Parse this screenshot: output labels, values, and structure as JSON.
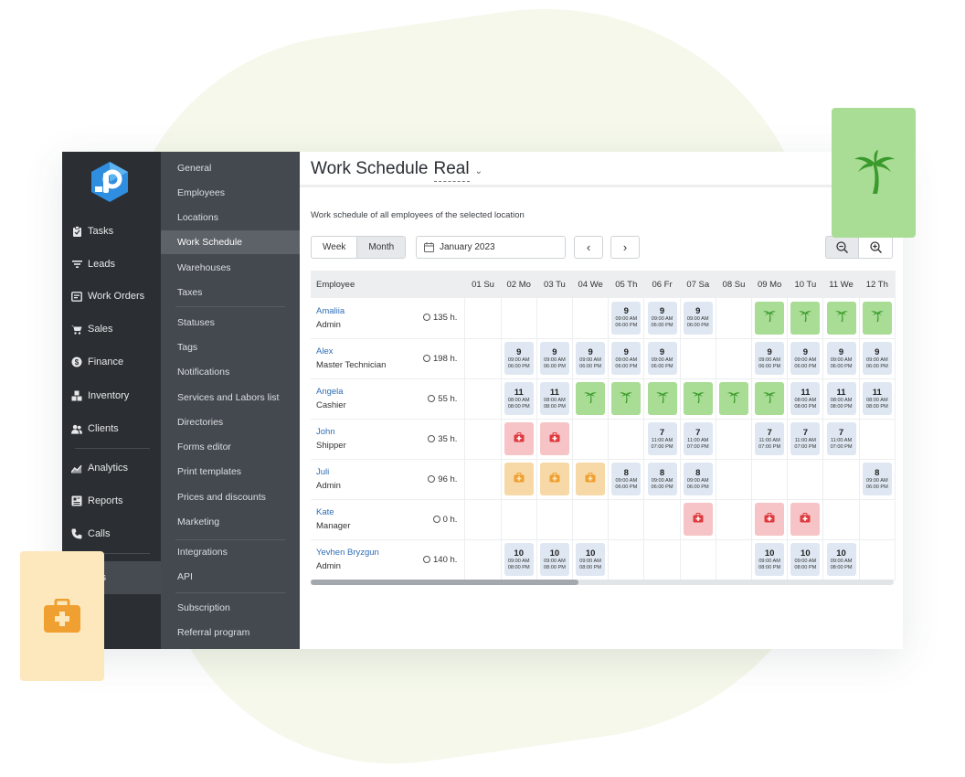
{
  "app": {
    "title_prefix": "Work Schedule",
    "title_selected": "Real",
    "subtitle": "Work schedule of all employees of the selected location"
  },
  "rail": {
    "items": [
      {
        "label": "Tasks",
        "icon": "clipboard-icon"
      },
      {
        "label": "Leads",
        "icon": "filter-icon"
      },
      {
        "label": "Work Orders",
        "icon": "work-order-icon"
      },
      {
        "label": "Sales",
        "icon": "cart-icon"
      },
      {
        "label": "Finance",
        "icon": "dollar-icon"
      },
      {
        "label": "Inventory",
        "icon": "boxes-icon"
      },
      {
        "label": "Clients",
        "icon": "users-icon"
      },
      {
        "label": "Analytics",
        "icon": "chart-icon"
      },
      {
        "label": "Reports",
        "icon": "reports-icon"
      },
      {
        "label": "Calls",
        "icon": "phone-icon"
      },
      {
        "label": "Settings",
        "label_visible": "ings",
        "icon": "gear-icon"
      }
    ]
  },
  "submenu": {
    "items": [
      "General",
      "Employees",
      "Locations",
      "Work Schedule",
      "Warehouses",
      "Taxes",
      "Statuses",
      "Tags",
      "Notifications",
      "Services and Labors list",
      "Directories",
      "Forms editor",
      "Print templates",
      "Prices and discounts",
      "Marketing",
      "Integrations",
      "API",
      "Subscription",
      "Referral program"
    ],
    "active": "Work Schedule"
  },
  "controls": {
    "week_label": "Week",
    "month_label": "Month",
    "date_value": "January 2023",
    "prev_icon": "chevron-left-icon",
    "next_icon": "chevron-right-icon",
    "zoom_out_icon": "zoom-out-icon",
    "zoom_in_icon": "zoom-in-icon"
  },
  "schedule": {
    "employee_header": "Employee",
    "days": [
      "01 Su",
      "02 Mo",
      "03 Tu",
      "04 We",
      "05 Th",
      "06 Fr",
      "07 Sa",
      "08 Su",
      "09 Mo",
      "10 Tu",
      "11 We",
      "12 Th"
    ],
    "rows": [
      {
        "name": "Amaliia",
        "role": "Admin",
        "hours": "135 h.",
        "cells": [
          null,
          null,
          null,
          null,
          {
            "type": "work",
            "num": "9",
            "start": "09:00 AM",
            "end": "06:00 PM"
          },
          {
            "type": "work",
            "num": "9",
            "start": "09:00 AM",
            "end": "06:00 PM"
          },
          {
            "type": "work",
            "num": "9",
            "start": "09:00 AM",
            "end": "06:00 PM"
          },
          null,
          {
            "type": "vacation"
          },
          {
            "type": "vacation"
          },
          {
            "type": "vacation"
          },
          {
            "type": "vacation"
          }
        ]
      },
      {
        "name": "Alex",
        "role": "Master Technician",
        "hours": "198 h.",
        "cells": [
          null,
          {
            "type": "work",
            "num": "9",
            "start": "09:00 AM",
            "end": "06:00 PM"
          },
          {
            "type": "work",
            "num": "9",
            "start": "09:00 AM",
            "end": "06:00 PM"
          },
          {
            "type": "work",
            "num": "9",
            "start": "09:00 AM",
            "end": "06:00 PM"
          },
          {
            "type": "work",
            "num": "9",
            "start": "09:00 AM",
            "end": "06:00 PM"
          },
          {
            "type": "work",
            "num": "9",
            "start": "09:00 AM",
            "end": "06:00 PM"
          },
          null,
          null,
          {
            "type": "work",
            "num": "9",
            "start": "09:00 AM",
            "end": "06:00 PM"
          },
          {
            "type": "work",
            "num": "9",
            "start": "09:00 AM",
            "end": "06:00 PM"
          },
          {
            "type": "work",
            "num": "9",
            "start": "09:00 AM",
            "end": "06:00 PM"
          },
          {
            "type": "work",
            "num": "9",
            "start": "09:00 AM",
            "end": "06:00 PM"
          }
        ]
      },
      {
        "name": "Angela",
        "role": "Cashier",
        "hours": "55 h.",
        "cells": [
          null,
          {
            "type": "work",
            "num": "11",
            "start": "08:00 AM",
            "end": "08:00 PM"
          },
          {
            "type": "work",
            "num": "11",
            "start": "08:00 AM",
            "end": "08:00 PM"
          },
          {
            "type": "vacation"
          },
          {
            "type": "vacation"
          },
          {
            "type": "vacation"
          },
          {
            "type": "vacation"
          },
          {
            "type": "vacation"
          },
          {
            "type": "vacation"
          },
          {
            "type": "work",
            "num": "11",
            "start": "08:00 AM",
            "end": "08:00 PM"
          },
          {
            "type": "work",
            "num": "11",
            "start": "08:00 AM",
            "end": "08:00 PM"
          },
          {
            "type": "work",
            "num": "11",
            "start": "08:00 AM",
            "end": "08:00 PM"
          }
        ]
      },
      {
        "name": "John",
        "role": "Shipper",
        "hours": "35 h.",
        "cells": [
          null,
          {
            "type": "sick"
          },
          {
            "type": "sick"
          },
          null,
          null,
          {
            "type": "work",
            "num": "7",
            "start": "11:00 AM",
            "end": "07:00 PM"
          },
          {
            "type": "work",
            "num": "7",
            "start": "11:00 AM",
            "end": "07:00 PM"
          },
          null,
          {
            "type": "work",
            "num": "7",
            "start": "11:00 AM",
            "end": "07:00 PM"
          },
          {
            "type": "work",
            "num": "7",
            "start": "11:00 AM",
            "end": "07:00 PM"
          },
          {
            "type": "work",
            "num": "7",
            "start": "11:00 AM",
            "end": "07:00 PM"
          },
          null
        ]
      },
      {
        "name": "Juli",
        "role": "Admin",
        "hours": "96 h.",
        "cells": [
          null,
          {
            "type": "leave"
          },
          {
            "type": "leave"
          },
          {
            "type": "leave"
          },
          {
            "type": "work",
            "num": "8",
            "start": "09:00 AM",
            "end": "06:00 PM"
          },
          {
            "type": "work",
            "num": "8",
            "start": "09:00 AM",
            "end": "06:00 PM"
          },
          {
            "type": "work",
            "num": "8",
            "start": "09:00 AM",
            "end": "06:00 PM"
          },
          null,
          null,
          null,
          null,
          {
            "type": "work",
            "num": "8",
            "start": "09:00 AM",
            "end": "06:00 PM"
          }
        ]
      },
      {
        "name": "Kate",
        "role": "Manager",
        "hours": "0 h.",
        "cells": [
          null,
          null,
          null,
          null,
          null,
          null,
          {
            "type": "sick"
          },
          null,
          {
            "type": "sick"
          },
          {
            "type": "sick"
          },
          null,
          null
        ]
      },
      {
        "name": "Yevhen Bryzgun",
        "role": "Admin",
        "hours": "140 h.",
        "cells": [
          null,
          {
            "type": "work",
            "num": "10",
            "start": "09:00 AM",
            "end": "08:00 PM"
          },
          {
            "type": "work",
            "num": "10",
            "start": "09:00 AM",
            "end": "08:00 PM"
          },
          {
            "type": "work",
            "num": "10",
            "start": "09:00 AM",
            "end": "08:00 PM"
          },
          null,
          null,
          null,
          null,
          {
            "type": "work",
            "num": "10",
            "start": "09:00 AM",
            "end": "08:00 PM"
          },
          {
            "type": "work",
            "num": "10",
            "start": "09:00 AM",
            "end": "08:00 PM"
          },
          {
            "type": "work",
            "num": "10",
            "start": "09:00 AM",
            "end": "08:00 PM"
          },
          null
        ]
      }
    ]
  },
  "colors": {
    "rail_bg": "#2b2f33",
    "submenu_bg": "#44494f",
    "work": "#dfe8f2",
    "vacation": "#a9dc94",
    "sick": "#f6c4c6",
    "leave": "#f7d9a8",
    "link": "#2f6db5",
    "sick_icon": "#e0393e",
    "leave_icon": "#f0a030",
    "palm": "#3a9a2c"
  },
  "decor": {
    "floating_cards": [
      {
        "icon": "palm-tree-icon",
        "bg": "#a9dc94"
      },
      {
        "icon": "first-aid-kit-icon",
        "bg": "#fde7bd"
      }
    ]
  }
}
